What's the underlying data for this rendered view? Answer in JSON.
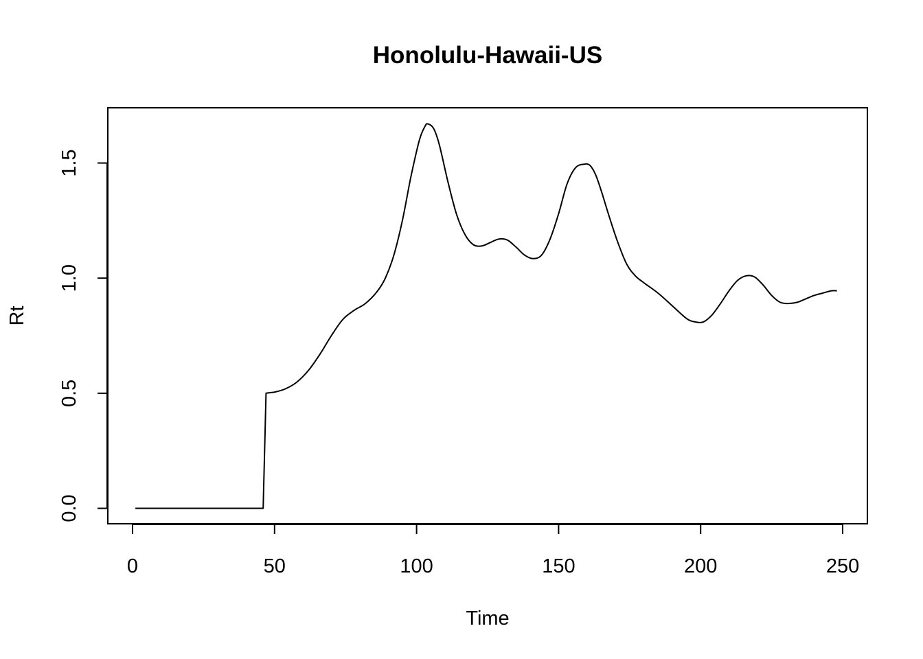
{
  "chart_data": {
    "type": "line",
    "title": "Honolulu-Hawaii-US",
    "xlabel": "Time",
    "ylabel": "Rt",
    "xlim": [
      -8.7,
      258.7
    ],
    "ylim": [
      -0.067,
      1.74
    ],
    "x_ticks": [
      {
        "value": 0,
        "label": "0"
      },
      {
        "value": 50,
        "label": "50"
      },
      {
        "value": 100,
        "label": "100"
      },
      {
        "value": 150,
        "label": "150"
      },
      {
        "value": 200,
        "label": "200"
      },
      {
        "value": 250,
        "label": "250"
      }
    ],
    "y_ticks": [
      {
        "value": 0.0,
        "label": "0.0"
      },
      {
        "value": 0.5,
        "label": "0.5"
      },
      {
        "value": 1.0,
        "label": "1.0"
      },
      {
        "value": 1.5,
        "label": "1.5"
      }
    ],
    "grid": false,
    "legend": "none",
    "series": [
      {
        "color": "#000000",
        "x": [
          1,
          10,
          20,
          30,
          40,
          46,
          47,
          50,
          54,
          58,
          62,
          66,
          70,
          74,
          78,
          82,
          86,
          89,
          92,
          95,
          98,
          101,
          103,
          104,
          106,
          108,
          111,
          114,
          117,
          120,
          123,
          126,
          129,
          132,
          135,
          138,
          141,
          144,
          147,
          150,
          153,
          156,
          159,
          161,
          163,
          165,
          168,
          171,
          174,
          177,
          180,
          185,
          190,
          195,
          198,
          201,
          204,
          207,
          210,
          213,
          216,
          219,
          222,
          225,
          228,
          231,
          234,
          237,
          240,
          243,
          246,
          248
        ],
        "y": [
          0.0,
          0.0,
          0.0,
          0.0,
          0.0,
          0.0,
          0.5,
          0.505,
          0.52,
          0.55,
          0.6,
          0.67,
          0.75,
          0.82,
          0.86,
          0.89,
          0.94,
          1.0,
          1.1,
          1.25,
          1.44,
          1.6,
          1.66,
          1.67,
          1.65,
          1.58,
          1.42,
          1.28,
          1.19,
          1.145,
          1.14,
          1.155,
          1.17,
          1.165,
          1.135,
          1.1,
          1.085,
          1.1,
          1.17,
          1.28,
          1.41,
          1.48,
          1.495,
          1.49,
          1.45,
          1.38,
          1.26,
          1.15,
          1.06,
          1.01,
          0.98,
          0.935,
          0.88,
          0.825,
          0.81,
          0.81,
          0.84,
          0.89,
          0.945,
          0.99,
          1.01,
          1.005,
          0.97,
          0.925,
          0.895,
          0.89,
          0.895,
          0.91,
          0.925,
          0.935,
          0.945,
          0.945
        ]
      }
    ]
  }
}
